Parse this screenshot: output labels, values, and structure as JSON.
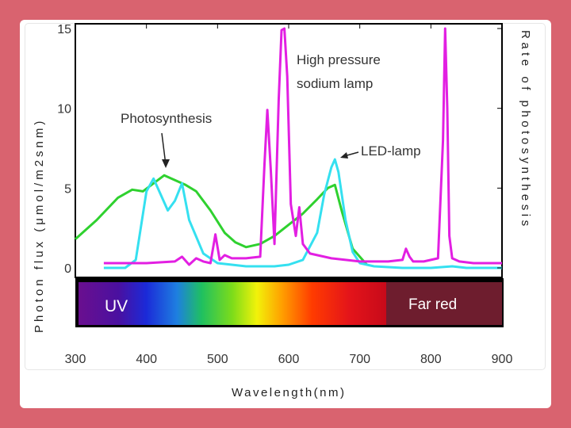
{
  "chart_data": {
    "type": "line",
    "xlabel": "Wavelength(nm)",
    "ylabel_left": "Photon flux (μmol/m2snm)",
    "ylabel_right": "Rate of photosynthesis",
    "x_ticks": [
      300,
      400,
      500,
      600,
      700,
      800,
      900
    ],
    "y_ticks": [
      0,
      5,
      10,
      15
    ],
    "xlim": [
      300,
      900
    ],
    "ylim": [
      0,
      15
    ],
    "spectrum_bar": {
      "uv_label": "UV",
      "far_red_label": "Far red"
    },
    "annotations": [
      {
        "text": "Photosynthesis",
        "x": 410,
        "y": 10.0
      },
      {
        "text": "High pressure",
        "x": 610,
        "y": 13.5
      },
      {
        "text": "sodium lamp",
        "x": 610,
        "y": 12.1
      },
      {
        "text": "LED-lamp",
        "x": 700,
        "y": 7.0
      }
    ],
    "series": [
      {
        "color": "#2fd12f",
        "x": [
          300,
          330,
          360,
          380,
          395,
          410,
          425,
          440,
          455,
          470,
          490,
          510,
          525,
          540,
          560,
          580,
          600,
          620,
          640,
          655,
          665,
          675,
          690,
          710
        ],
        "y": [
          1.8,
          3.0,
          4.4,
          4.9,
          4.8,
          5.3,
          5.8,
          5.5,
          5.2,
          4.8,
          3.6,
          2.2,
          1.6,
          1.3,
          1.5,
          2.0,
          2.7,
          3.4,
          4.3,
          5.0,
          5.2,
          3.5,
          1.2,
          0.2
        ]
      },
      {
        "color": "#35e0f0",
        "x": [
          340,
          370,
          385,
          400,
          410,
          420,
          430,
          440,
          450,
          460,
          480,
          500,
          520,
          540,
          560,
          580,
          600,
          620,
          640,
          650,
          660,
          665,
          670,
          680,
          690,
          700,
          720,
          760,
          800,
          830,
          850,
          900
        ],
        "y": [
          0,
          0,
          0.5,
          4.8,
          5.6,
          4.6,
          3.6,
          4.2,
          5.3,
          3.0,
          0.9,
          0.3,
          0.2,
          0.1,
          0.1,
          0.1,
          0.2,
          0.5,
          2.2,
          4.6,
          6.3,
          6.8,
          6.0,
          3.0,
          1.0,
          0.3,
          0.1,
          0,
          0,
          0.1,
          0,
          0
        ]
      },
      {
        "color": "#e21fe2",
        "x": [
          340,
          400,
          440,
          450,
          460,
          470,
          480,
          490,
          497,
          503,
          510,
          520,
          540,
          560,
          566,
          570,
          575,
          580,
          586,
          590,
          594,
          598,
          603,
          610,
          615,
          620,
          630,
          660,
          700,
          740,
          760,
          765,
          770,
          775,
          790,
          810,
          817,
          820,
          823,
          826,
          830,
          840,
          860,
          900
        ],
        "y": [
          0.3,
          0.3,
          0.4,
          0.7,
          0.2,
          0.6,
          0.4,
          0.3,
          2.1,
          0.5,
          0.8,
          0.6,
          0.6,
          0.7,
          6.5,
          9.9,
          6.0,
          1.5,
          10.5,
          14.9,
          15.0,
          12.0,
          4.0,
          2.0,
          3.8,
          1.5,
          0.9,
          0.6,
          0.4,
          0.4,
          0.5,
          1.2,
          0.7,
          0.4,
          0.4,
          0.6,
          8.0,
          15.0,
          10.0,
          2.0,
          0.6,
          0.4,
          0.3,
          0.3
        ]
      }
    ]
  }
}
